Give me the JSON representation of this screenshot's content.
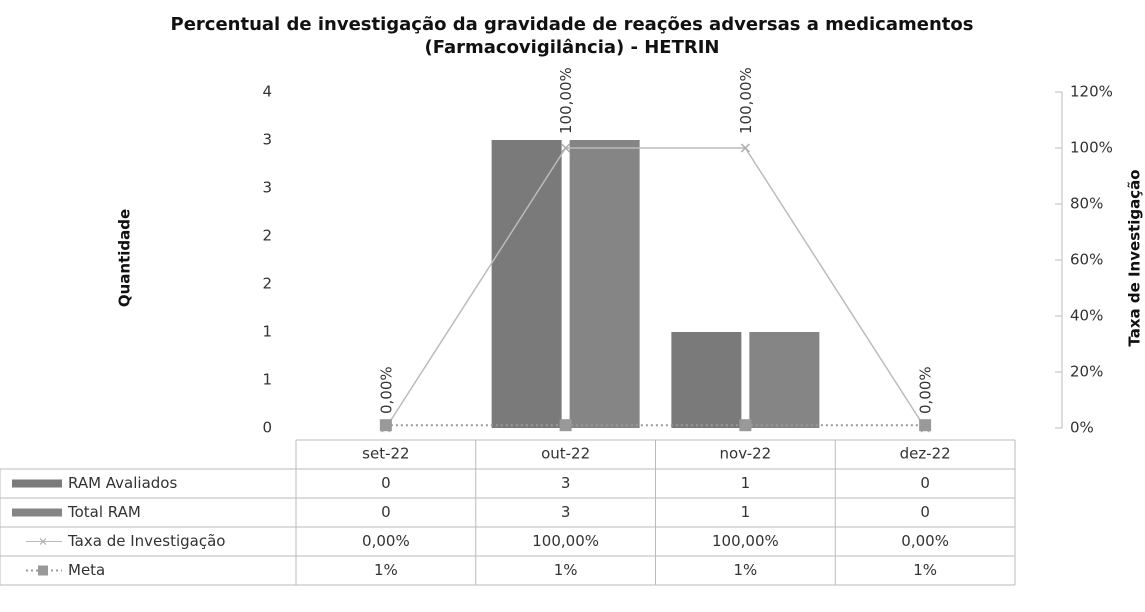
{
  "chart_data": {
    "type": "bar",
    "title": [
      "Percentual de investigação da gravidade de reações adversas a medicamentos",
      "(Farmacovigilância) - HETRIN"
    ],
    "y_label": "Quantidade",
    "y2_label": "Taxa de Investigação",
    "categories": [
      "set-22",
      "out-22",
      "nov-22",
      "dez-22"
    ],
    "series": [
      {
        "name": "RAM Avaliados",
        "type": "bar",
        "color": "#7a7a7a",
        "values": [
          0,
          3,
          1,
          0
        ]
      },
      {
        "name": "Total RAM",
        "type": "bar",
        "color": "#858585",
        "values": [
          0,
          3,
          1,
          0
        ]
      },
      {
        "name": "Taxa de Investigação",
        "type": "line",
        "axis": "y2",
        "color": "#bbbbbb",
        "values": [
          0,
          100,
          100,
          0
        ],
        "value_labels": [
          "0,00%",
          "100,00%",
          "100,00%",
          "0,00%"
        ]
      },
      {
        "name": "Meta",
        "type": "line",
        "axis": "y2",
        "color": "#999999",
        "values": [
          1,
          1,
          1,
          1
        ],
        "value_labels": [
          "1%",
          "1%",
          "1%",
          "1%"
        ]
      }
    ],
    "ylim": [
      0,
      3.5
    ],
    "yticks": [
      0,
      {
        "value": 0.5,
        "label": "1"
      },
      1,
      {
        "value": 1.5,
        "label": "2"
      },
      2,
      {
        "value": 2.5,
        "label": "3"
      },
      3,
      {
        "value": 3.5,
        "label": "4"
      }
    ],
    "y2lim": [
      0,
      120
    ],
    "y2ticks": [
      {
        "value": 0,
        "label": "0%"
      },
      {
        "value": 20,
        "label": "20%"
      },
      {
        "value": 40,
        "label": "40%"
      },
      {
        "value": 60,
        "label": "60%"
      },
      {
        "value": 80,
        "label": "80%"
      },
      {
        "value": 100,
        "label": "100%"
      },
      {
        "value": 120,
        "label": "120%"
      }
    ],
    "data_table": true
  }
}
